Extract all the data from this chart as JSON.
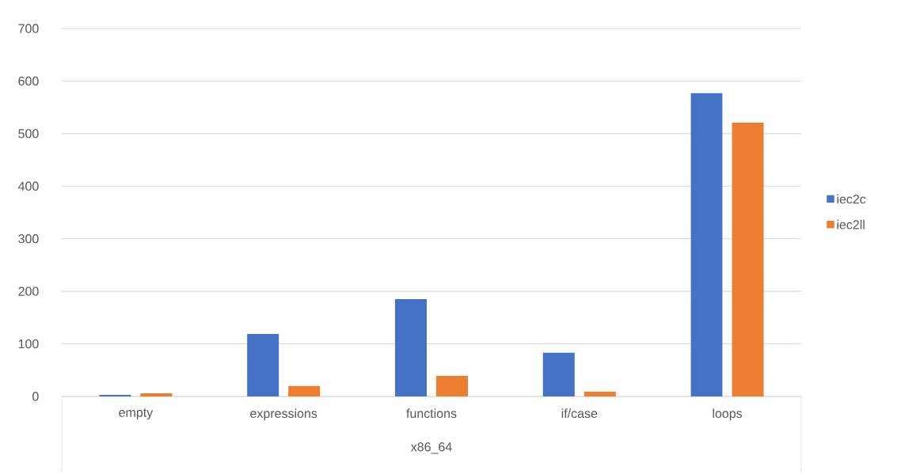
{
  "chart_data": {
    "type": "bar",
    "xlabel": "x86_64",
    "categories": [
      "empty",
      "expressions",
      "functions",
      "if/case",
      "loops"
    ],
    "series": [
      {
        "name": "iec2c",
        "color": "#4472c4",
        "values": [
          3,
          119,
          185,
          83,
          577
        ]
      },
      {
        "name": "iec2ll",
        "color": "#ed7d31",
        "values": [
          6,
          20,
          39,
          9,
          521
        ]
      }
    ],
    "ylim": [
      0,
      700
    ],
    "yticks": [
      0,
      100,
      200,
      300,
      400,
      500,
      600,
      700
    ],
    "grid": "y",
    "legend": "right"
  }
}
